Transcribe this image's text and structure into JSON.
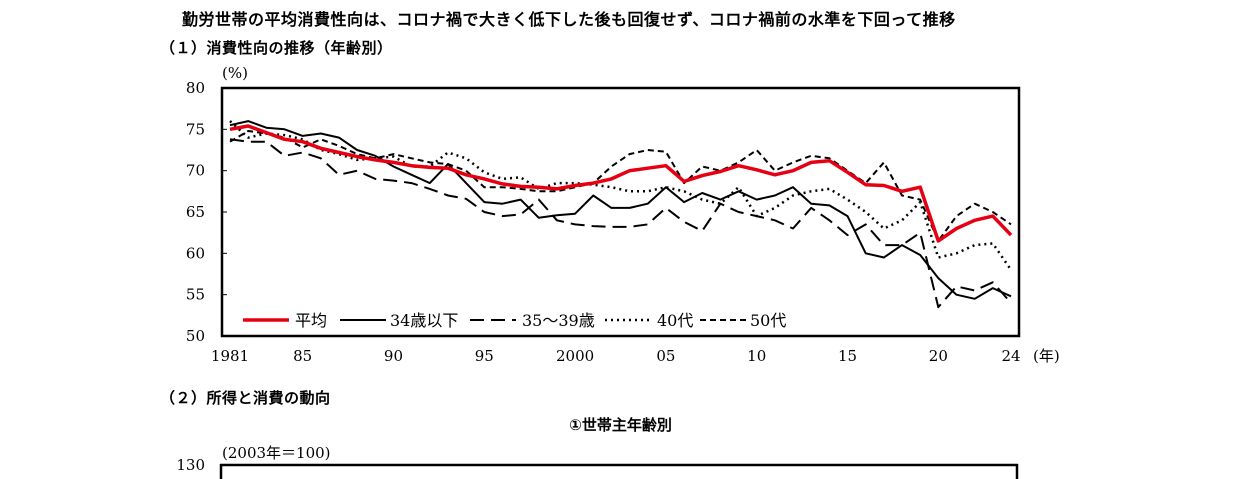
{
  "headline": "勤労世帯の平均消費性向は、コロナ禍で大きく低下した後も回復せず、コロナ禍前の水準を下回って推移",
  "section1": "（１）消費性向の推移（年齢別）",
  "section2": "（２）所得と消費の動向",
  "subchart_title": "①世帯主年齢別",
  "chart_data": [
    {
      "type": "line",
      "title": "",
      "ylabel": "(%)",
      "xlabel": "(年)",
      "ylim": [
        50,
        80
      ],
      "xlim": [
        1981,
        2024
      ],
      "y_ticks": [
        "50",
        "55",
        "60",
        "65",
        "70",
        "75",
        "80"
      ],
      "x_ticks": [
        {
          "year": 1981,
          "label": "1981"
        },
        {
          "year": 1985,
          "label": "85"
        },
        {
          "year": 1990,
          "label": "90"
        },
        {
          "year": 1995,
          "label": "95"
        },
        {
          "year": 2000,
          "label": "2000"
        },
        {
          "year": 2005,
          "label": "05"
        },
        {
          "year": 2010,
          "label": "10"
        },
        {
          "year": 2015,
          "label": "15"
        },
        {
          "year": 2020,
          "label": "20"
        },
        {
          "year": 2024,
          "label": "24"
        }
      ],
      "legend_position": "bottom-left",
      "grid": false,
      "x": [
        1981,
        1982,
        1983,
        1984,
        1985,
        1986,
        1987,
        1988,
        1989,
        1990,
        1991,
        1992,
        1993,
        1994,
        1995,
        1996,
        1997,
        1998,
        1999,
        2000,
        2001,
        2002,
        2003,
        2004,
        2005,
        2006,
        2007,
        2008,
        2009,
        2010,
        2011,
        2012,
        2013,
        2014,
        2015,
        2016,
        2017,
        2018,
        2019,
        2020,
        2021,
        2022,
        2023,
        2024
      ],
      "series": [
        {
          "name": "平均",
          "color": "#e60012",
          "style": "solid-thick",
          "values": [
            75.0,
            75.4,
            74.6,
            73.8,
            73.5,
            72.7,
            72.2,
            71.7,
            71.3,
            71.0,
            70.6,
            70.4,
            70.3,
            69.5,
            69.0,
            68.4,
            68.1,
            68.0,
            67.8,
            68.2,
            68.5,
            69.0,
            70.0,
            70.3,
            70.6,
            68.7,
            69.4,
            69.9,
            70.6,
            70.1,
            69.5,
            70.0,
            71.0,
            71.2,
            69.8,
            68.3,
            68.2,
            67.5,
            68.0,
            61.5,
            63.0,
            64.0,
            64.5,
            62.2
          ]
        },
        {
          "name": "34歳以下",
          "color": "#000000",
          "style": "solid",
          "values": [
            75.5,
            76.0,
            75.2,
            75.0,
            74.2,
            74.5,
            74.0,
            72.5,
            71.8,
            70.5,
            69.5,
            68.5,
            70.8,
            68.5,
            66.2,
            66.0,
            66.5,
            64.3,
            64.6,
            64.8,
            67.0,
            65.5,
            65.5,
            66.0,
            68.0,
            66.2,
            67.3,
            66.5,
            67.5,
            66.5,
            67.0,
            68.0,
            66.0,
            65.8,
            64.5,
            60.0,
            59.5,
            61.0,
            59.8,
            57.0,
            55.0,
            54.5,
            55.8,
            54.8
          ]
        },
        {
          "name": "35～39歳",
          "color": "#000000",
          "style": "dashed",
          "values": [
            73.8,
            73.5,
            73.5,
            71.8,
            72.2,
            71.5,
            69.5,
            70.0,
            69.0,
            68.8,
            68.5,
            67.8,
            67.0,
            66.6,
            65.0,
            64.5,
            64.7,
            66.5,
            64.0,
            63.5,
            63.3,
            63.2,
            63.2,
            63.5,
            65.5,
            63.8,
            62.7,
            66.0,
            65.0,
            64.5,
            64.0,
            63.0,
            65.5,
            64.0,
            62.2,
            63.5,
            61.0,
            61.0,
            62.5,
            53.5,
            56.0,
            55.5,
            56.5,
            54.0
          ]
        },
        {
          "name": "40代",
          "color": "#000000",
          "style": "dotted",
          "values": [
            76.0,
            74.0,
            74.5,
            74.3,
            73.8,
            72.5,
            72.0,
            71.3,
            71.5,
            71.7,
            70.5,
            70.5,
            72.2,
            71.5,
            69.8,
            69.0,
            69.2,
            67.8,
            68.5,
            68.5,
            68.3,
            68.0,
            67.5,
            67.5,
            68.0,
            67.5,
            66.5,
            66.0,
            68.0,
            64.5,
            65.5,
            67.0,
            67.5,
            67.8,
            66.5,
            65.0,
            63.0,
            64.0,
            66.2,
            59.5,
            60.0,
            61.0,
            61.2,
            58.0
          ]
        },
        {
          "name": "50代",
          "color": "#000000",
          "style": "dashed-short",
          "values": [
            73.5,
            74.8,
            74.5,
            74.0,
            72.8,
            73.8,
            73.0,
            72.0,
            71.5,
            72.0,
            71.5,
            71.0,
            70.8,
            70.0,
            68.0,
            68.0,
            67.8,
            67.5,
            67.5,
            68.0,
            68.5,
            70.5,
            72.0,
            72.5,
            72.3,
            68.5,
            70.5,
            70.0,
            71.0,
            72.5,
            70.0,
            71.0,
            71.8,
            71.5,
            70.0,
            68.5,
            71.0,
            67.0,
            66.5,
            61.5,
            64.5,
            66.0,
            65.0,
            63.5
          ]
        }
      ]
    },
    {
      "type": "line",
      "title": "",
      "ylabel": "(2003年＝100)",
      "y_ticks": [
        "130"
      ],
      "series": []
    }
  ]
}
